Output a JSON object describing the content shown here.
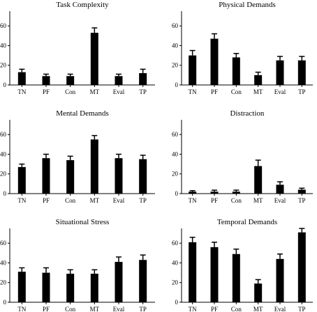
{
  "chart_data": [
    {
      "type": "bar",
      "title": "Task Complexity",
      "categories": [
        "TN",
        "PF",
        "Con",
        "MT",
        "Eval",
        "TP"
      ],
      "values": [
        13,
        9,
        9,
        53,
        9,
        12
      ],
      "errors": [
        3,
        2,
        2,
        5,
        2,
        4
      ],
      "ylim": [
        0,
        75
      ],
      "yticks": [
        "0",
        "20",
        "40",
        "60"
      ],
      "xlabel": "",
      "ylabel": "",
      "grid": false
    },
    {
      "type": "bar",
      "title": "Physical Demands",
      "categories": [
        "TN",
        "PF",
        "Con",
        "MT",
        "Eval",
        "TP"
      ],
      "values": [
        30,
        47,
        28,
        10,
        25,
        25
      ],
      "errors": [
        5,
        5,
        4,
        3,
        4,
        4
      ],
      "ylim": [
        0,
        75
      ],
      "yticks": [
        "0",
        "20",
        "40",
        "60"
      ],
      "xlabel": "",
      "ylabel": "",
      "grid": false
    },
    {
      "type": "bar",
      "title": "Mental Demands",
      "categories": [
        "TN",
        "PF",
        "Con",
        "MT",
        "Eval",
        "TP"
      ],
      "values": [
        27,
        36,
        34,
        55,
        36,
        35
      ],
      "errors": [
        3,
        4,
        4,
        4,
        4,
        4
      ],
      "ylim": [
        0,
        75
      ],
      "yticks": [
        "0",
        "20",
        "40",
        "60"
      ],
      "xlabel": "",
      "ylabel": "",
      "grid": false
    },
    {
      "type": "bar",
      "title": "Distraction",
      "categories": [
        "TN",
        "PF",
        "Con",
        "MT",
        "Eval",
        "TP"
      ],
      "values": [
        2,
        2,
        2,
        28,
        9,
        4
      ],
      "errors": [
        1,
        1.5,
        1.5,
        6,
        3,
        1.5
      ],
      "ylim": [
        0,
        75
      ],
      "yticks": [
        "0",
        "20",
        "40",
        "60"
      ],
      "xlabel": "",
      "ylabel": "",
      "grid": false
    },
    {
      "type": "bar",
      "title": "Situational Stress",
      "categories": [
        "TN",
        "PF",
        "Con",
        "MT",
        "Eval",
        "TP"
      ],
      "values": [
        31,
        30,
        29,
        29,
        41,
        43
      ],
      "errors": [
        4,
        5,
        4,
        4,
        5,
        5
      ],
      "ylim": [
        0,
        75
      ],
      "yticks": [
        "0",
        "20",
        "40",
        "60"
      ],
      "xlabel": "",
      "ylabel": "",
      "grid": false
    },
    {
      "type": "bar",
      "title": "Temporal Demands",
      "categories": [
        "TN",
        "PF",
        "Con",
        "MT",
        "Eval",
        "TP"
      ],
      "values": [
        61,
        56,
        49,
        19,
        44,
        71
      ],
      "errors": [
        5,
        5,
        5,
        4,
        5,
        4
      ],
      "ylim": [
        0,
        75
      ],
      "yticks": [
        "0",
        "20",
        "40",
        "60"
      ],
      "xlabel": "",
      "ylabel": "",
      "grid": false
    }
  ],
  "colors": {
    "bar": "#000000",
    "axis": "#000000",
    "background": "#ffffff"
  }
}
